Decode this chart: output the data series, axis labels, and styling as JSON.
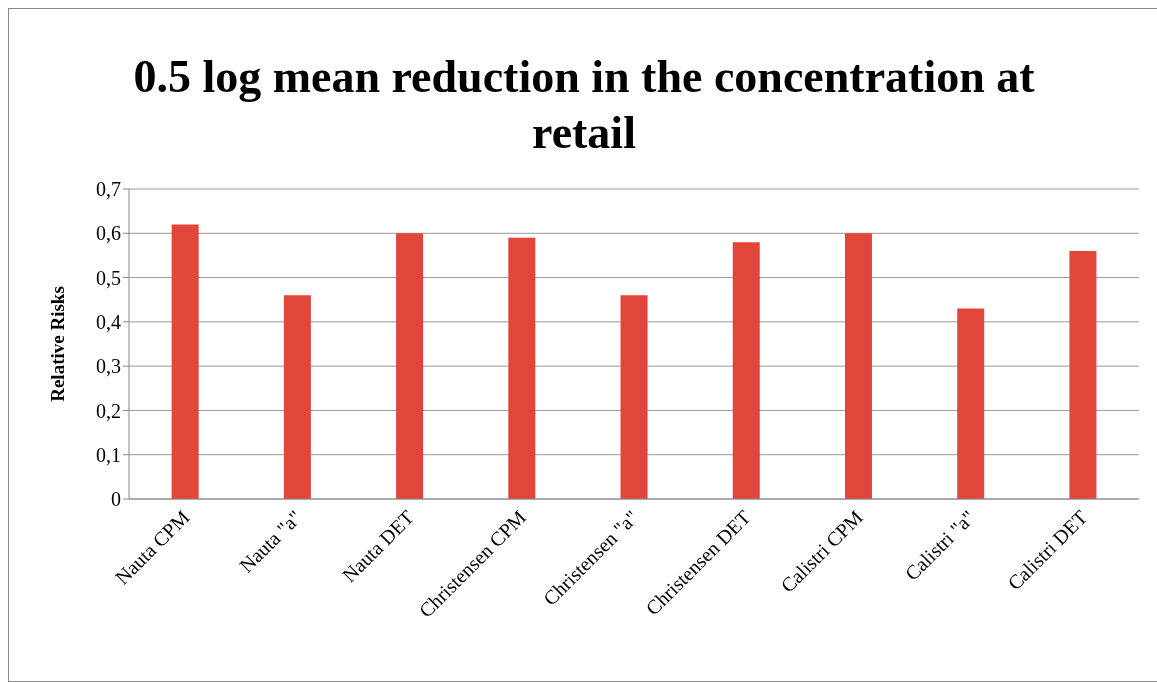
{
  "chart_data": {
    "type": "bar",
    "title": "0.5 log mean reduction in the concentration at retail",
    "ylabel": "Relative Risks",
    "categories": [
      "Nauta CPM",
      "Nauta \"a\"",
      "Nauta DET",
      "Christensen CPM",
      "Christensen \"a\"",
      "Christensen DET",
      "Calistri CPM",
      "Calistri \"a\"",
      "Calistri DET"
    ],
    "values": [
      0.62,
      0.46,
      0.6,
      0.59,
      0.46,
      0.58,
      0.6,
      0.43,
      0.56
    ],
    "color": "#e2453a",
    "ylim": [
      0,
      0.7
    ],
    "yticks": [
      0,
      {
        "value": 0.1,
        "label": "0,1"
      },
      {
        "value": 0.2,
        "label": "0,2"
      },
      {
        "value": 0.3,
        "label": "0,3"
      },
      {
        "value": 0.4,
        "label": "0,4"
      },
      {
        "value": 0.5,
        "label": "0,5"
      },
      {
        "value": 0.6,
        "label": "0,6"
      },
      {
        "value": 0.7,
        "label": "0,7"
      }
    ],
    "grid": "y",
    "legend": false
  }
}
